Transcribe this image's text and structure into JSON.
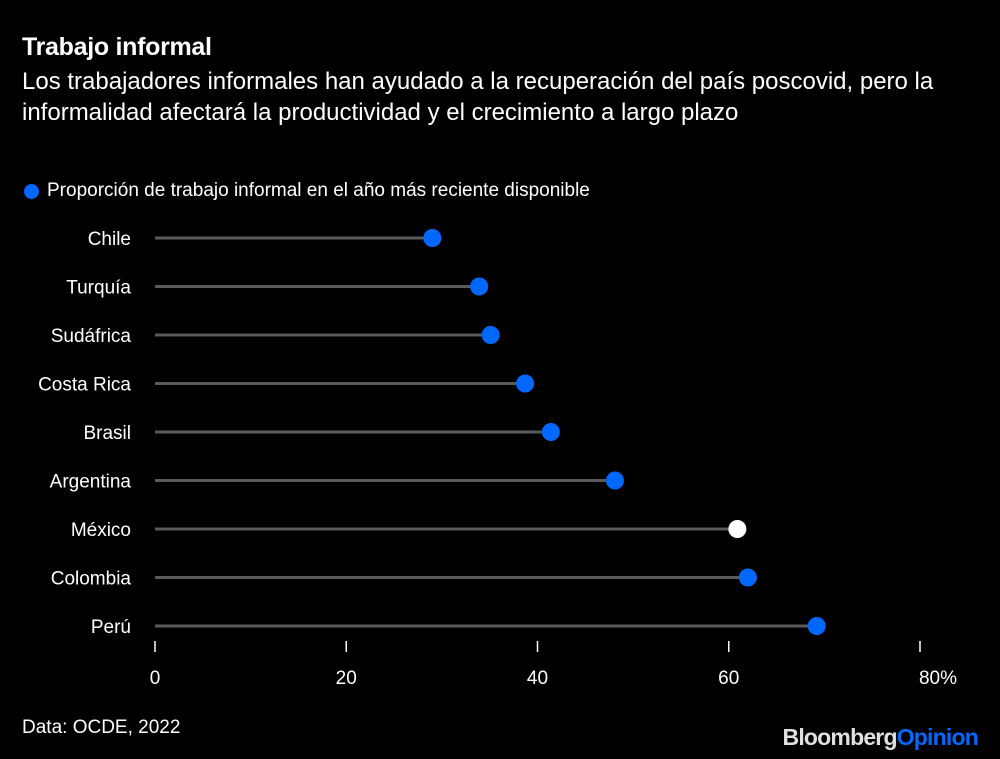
{
  "chart_data": {
    "type": "lollipop",
    "title": "Trabajo informal",
    "subtitle": "Los trabajadores informales han ayudado a la recuperación del país poscovid, pero la informalidad afectará la productividad y el crecimiento a largo plazo",
    "legend": {
      "label": "Proporción de trabajo informal en el año más reciente disponible",
      "placement": "top-left"
    },
    "categories": [
      "Chile",
      "Turquía",
      "Sudáfrica",
      "Costa Rica",
      "Brasil",
      "Argentina",
      "México",
      "Colombia",
      "Perú"
    ],
    "values": [
      29.0,
      33.9,
      35.1,
      38.7,
      41.4,
      48.1,
      60.9,
      62.0,
      69.2
    ],
    "highlight": "México",
    "xlim": [
      0,
      80
    ],
    "xticks": [
      0,
      20,
      40,
      60,
      80
    ],
    "xtick_labels": [
      "0",
      "20",
      "40",
      "60",
      "80%"
    ],
    "xlabel": "",
    "ylabel": ""
  },
  "source": "Data: OCDE, 2022",
  "logo": {
    "part1": "Bloomberg",
    "part2": "Opinion"
  },
  "colors": {
    "accent": "#0068ff",
    "highlight": "#ffffff",
    "stem": "#5a5a5a",
    "background": "#000000"
  }
}
